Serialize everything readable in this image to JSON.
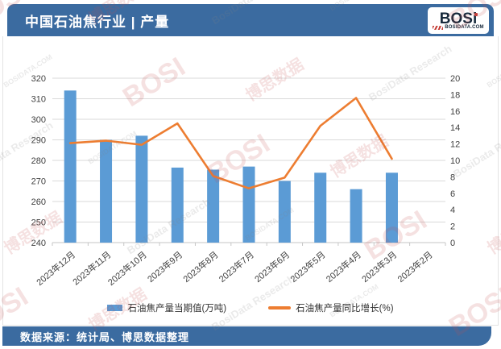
{
  "header": {
    "title": "中国石油焦行业 | 产量",
    "logo": {
      "wordmark": "BOSi",
      "site": "BOSIDATA.COM"
    }
  },
  "footer": {
    "source": "数据来源：统计局、博思数据整理"
  },
  "watermark": {
    "texts": [
      "BOSI",
      "博思数据",
      "BosiData Research",
      "BOSIDATA.COM"
    ]
  },
  "chart_data": {
    "type": "bar",
    "title": "中国石油焦行业 | 产量",
    "categories": [
      "2023年12月",
      "2023年11月",
      "2023年10月",
      "2023年9月",
      "2023年8月",
      "2023年7月",
      "2023年6月",
      "2023年5月",
      "2023年4月",
      "2023年3月",
      "2023年2月"
    ],
    "series": [
      {
        "name": "石油焦产量当期值(万吨)",
        "type": "bar",
        "axis": "left",
        "color": "#5B9BD5",
        "values": [
          314,
          290,
          292,
          276.5,
          275.5,
          277,
          270,
          274,
          266,
          274,
          null
        ]
      },
      {
        "name": "石油焦产量同比增长(%)",
        "type": "line",
        "axis": "right",
        "color": "#ED7D31",
        "values": [
          12.1,
          12.4,
          11.9,
          14.5,
          8.1,
          6.6,
          7.9,
          14.2,
          17.6,
          10.2,
          null
        ]
      }
    ],
    "left_axis": {
      "min": 240,
      "max": 320,
      "step": 10
    },
    "right_axis": {
      "min": 0,
      "max": 20,
      "step": 2
    },
    "grid": true,
    "legend_position": "bottom"
  },
  "colors": {
    "header_bg": "#3B6BA0",
    "footer_bg": "#3B6BA0",
    "bar": "#5B9BD5",
    "line": "#ED7D31",
    "grid": "#DADADA",
    "axis_line": "#C6C6C6",
    "axis_text": "#404040",
    "logo_navy": "#16293B",
    "logo_red": "#C43C35",
    "wm_red": "rgba(197,80,76,0.17)",
    "wm_gray": "rgba(130,130,130,0.17)"
  }
}
